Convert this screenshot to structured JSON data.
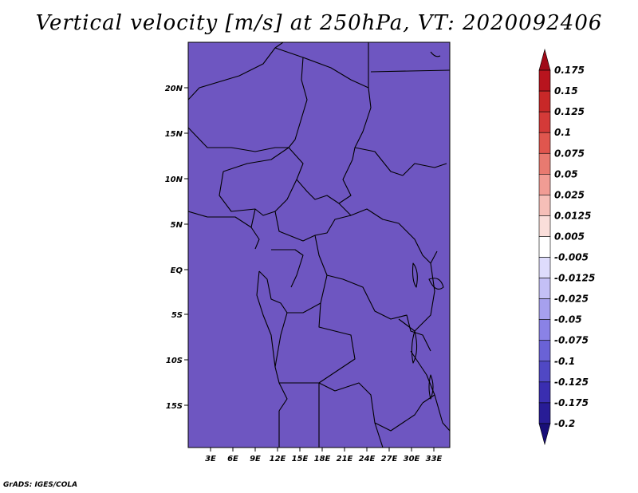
{
  "title": "Vertical velocity [m/s] at 250hPa, VT: 2020092406",
  "credit": "GrADS: IGES/COLA",
  "map": {
    "lat_ticks": [
      "20N",
      "15N",
      "10N",
      "5N",
      "EQ",
      "5S",
      "10S",
      "15S"
    ],
    "lon_ticks": [
      "3E",
      "6E",
      "9E",
      "12E",
      "15E",
      "18E",
      "21E",
      "24E",
      "27E",
      "30E",
      "33E"
    ]
  },
  "colorbar": {
    "labels": [
      "0.175",
      "0.15",
      "0.125",
      "0.1",
      "0.075",
      "0.05",
      "0.025",
      "0.0125",
      "0.005",
      "-0.005",
      "-0.0125",
      "-0.025",
      "-0.05",
      "-0.075",
      "-0.1",
      "-0.125",
      "-0.175",
      "-0.2"
    ],
    "colors": [
      "#a00a18",
      "#b8141e",
      "#c82828",
      "#d43a38",
      "#e0564e",
      "#e87a70",
      "#f19c94",
      "#f6bfb8",
      "#fadeda",
      "#ffffff",
      "#dedcfc",
      "#c4c0f6",
      "#a6a0ee",
      "#8a82e6",
      "#6a62d6",
      "#5048c4",
      "#3a2eb0",
      "#281c96",
      "#180e78"
    ]
  }
}
